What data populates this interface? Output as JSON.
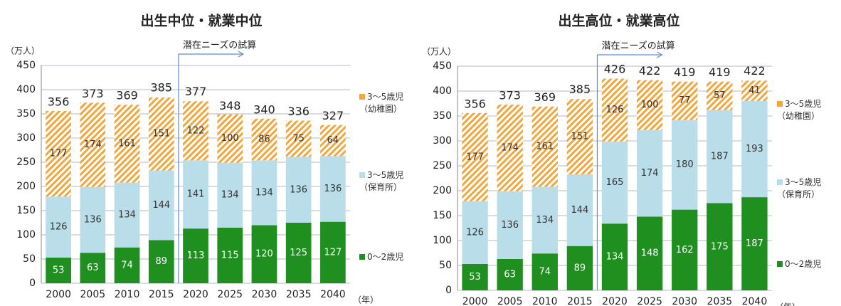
{
  "chart_data": [
    {
      "type": "bar",
      "stacked": true,
      "title": "出生中位・就業中位",
      "y_label": "（万人）",
      "x_label": "（年）",
      "categories": [
        "2000",
        "2005",
        "2010",
        "2015",
        "2020",
        "2025",
        "2030",
        "2035",
        "2040"
      ],
      "series": [
        {
          "name": "0～2歳児",
          "color": "#1f8f1f",
          "values": [
            53,
            63,
            74,
            89,
            113,
            115,
            120,
            125,
            127
          ]
        },
        {
          "name": "3～5歳児（保育所）",
          "color": "#b9dde9",
          "values": [
            126,
            136,
            134,
            144,
            141,
            134,
            134,
            136,
            136
          ]
        },
        {
          "name": "3～5歳児（幼稚園）",
          "color": "#f2a63c",
          "hatch": true,
          "values": [
            177,
            174,
            161,
            151,
            122,
            100,
            86,
            75,
            64
          ]
        }
      ],
      "totals": [
        356,
        373,
        369,
        385,
        377,
        348,
        340,
        336,
        327
      ],
      "annotation": {
        "text": "潜在ニーズの試算",
        "from": "2020"
      },
      "ylim": [
        0,
        450
      ],
      "yticks": [
        0,
        50,
        100,
        150,
        200,
        250,
        300,
        350,
        400,
        450
      ],
      "grid": true
    },
    {
      "type": "bar",
      "stacked": true,
      "title": "出生高位・就業高位",
      "y_label": "（万人）",
      "x_label": "（年）",
      "categories": [
        "2000",
        "2005",
        "2010",
        "2015",
        "2020",
        "2025",
        "2030",
        "2035",
        "2040"
      ],
      "series": [
        {
          "name": "0～2歳児",
          "color": "#1f8f1f",
          "values": [
            53,
            63,
            74,
            89,
            134,
            148,
            162,
            175,
            187
          ]
        },
        {
          "name": "3～5歳児（保育所）",
          "color": "#b9dde9",
          "values": [
            126,
            136,
            134,
            144,
            165,
            174,
            180,
            187,
            193
          ]
        },
        {
          "name": "3～5歳児（幼稚園）",
          "color": "#f2a63c",
          "hatch": true,
          "values": [
            177,
            174,
            161,
            151,
            126,
            100,
            77,
            57,
            41
          ]
        }
      ],
      "totals": [
        356,
        373,
        369,
        385,
        426,
        422,
        419,
        419,
        422
      ],
      "annotation": {
        "text": "潜在ニーズの試算",
        "from": "2020"
      },
      "ylim": [
        0,
        450
      ],
      "yticks": [
        0,
        50,
        100,
        150,
        200,
        250,
        300,
        350,
        400,
        450
      ],
      "grid": true
    }
  ]
}
